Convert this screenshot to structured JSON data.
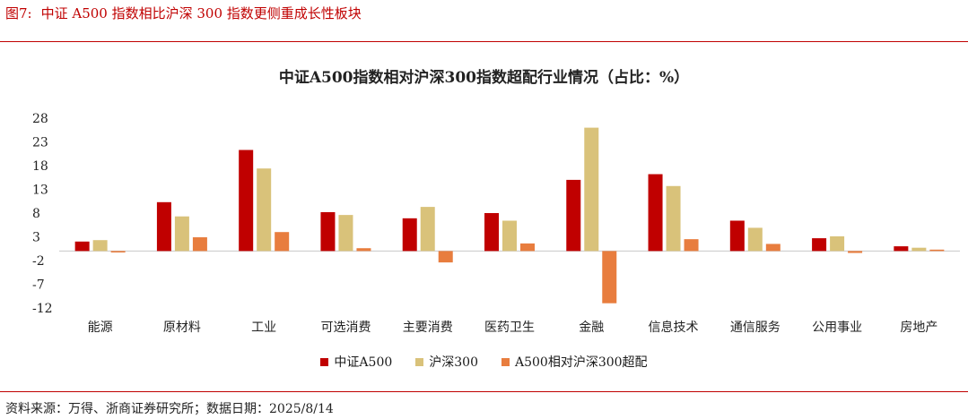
{
  "figure": {
    "number": "图7:",
    "title": "中证 A500 指数相比沪深 300 指数更侧重成长性板块"
  },
  "source_note": "资料来源：万得、浙商证券研究所；数据日期：2025/8/14",
  "chart_data": {
    "type": "bar",
    "title": "中证A500指数相对沪深300指数超配行业情况（占比：%）",
    "xlabel": "",
    "ylabel": "",
    "ylim": [
      -12,
      28
    ],
    "yticks": [
      -12,
      -7,
      -2,
      3,
      8,
      13,
      18,
      23,
      28
    ],
    "grid": false,
    "legend_position": "bottom",
    "categories": [
      "能源",
      "原材料",
      "工业",
      "可选消费",
      "主要消费",
      "医药卫生",
      "金融",
      "信息技术",
      "通信服务",
      "公用事业",
      "房地产"
    ],
    "series": [
      {
        "name": "中证A500",
        "color": "#c00000",
        "values": [
          2.0,
          10.3,
          21.3,
          8.2,
          6.9,
          8.0,
          15.0,
          16.2,
          6.4,
          2.7,
          1.0
        ]
      },
      {
        "name": "沪深300",
        "color": "#d9c27a",
        "values": [
          2.3,
          7.3,
          17.4,
          7.6,
          9.3,
          6.4,
          26.0,
          13.7,
          4.9,
          3.1,
          0.7
        ]
      },
      {
        "name": "A500相对沪深300超配",
        "color": "#e87d3e",
        "values": [
          -0.3,
          2.9,
          4.0,
          0.6,
          -2.4,
          1.6,
          -11.0,
          2.5,
          1.5,
          -0.4,
          0.3
        ]
      }
    ]
  }
}
